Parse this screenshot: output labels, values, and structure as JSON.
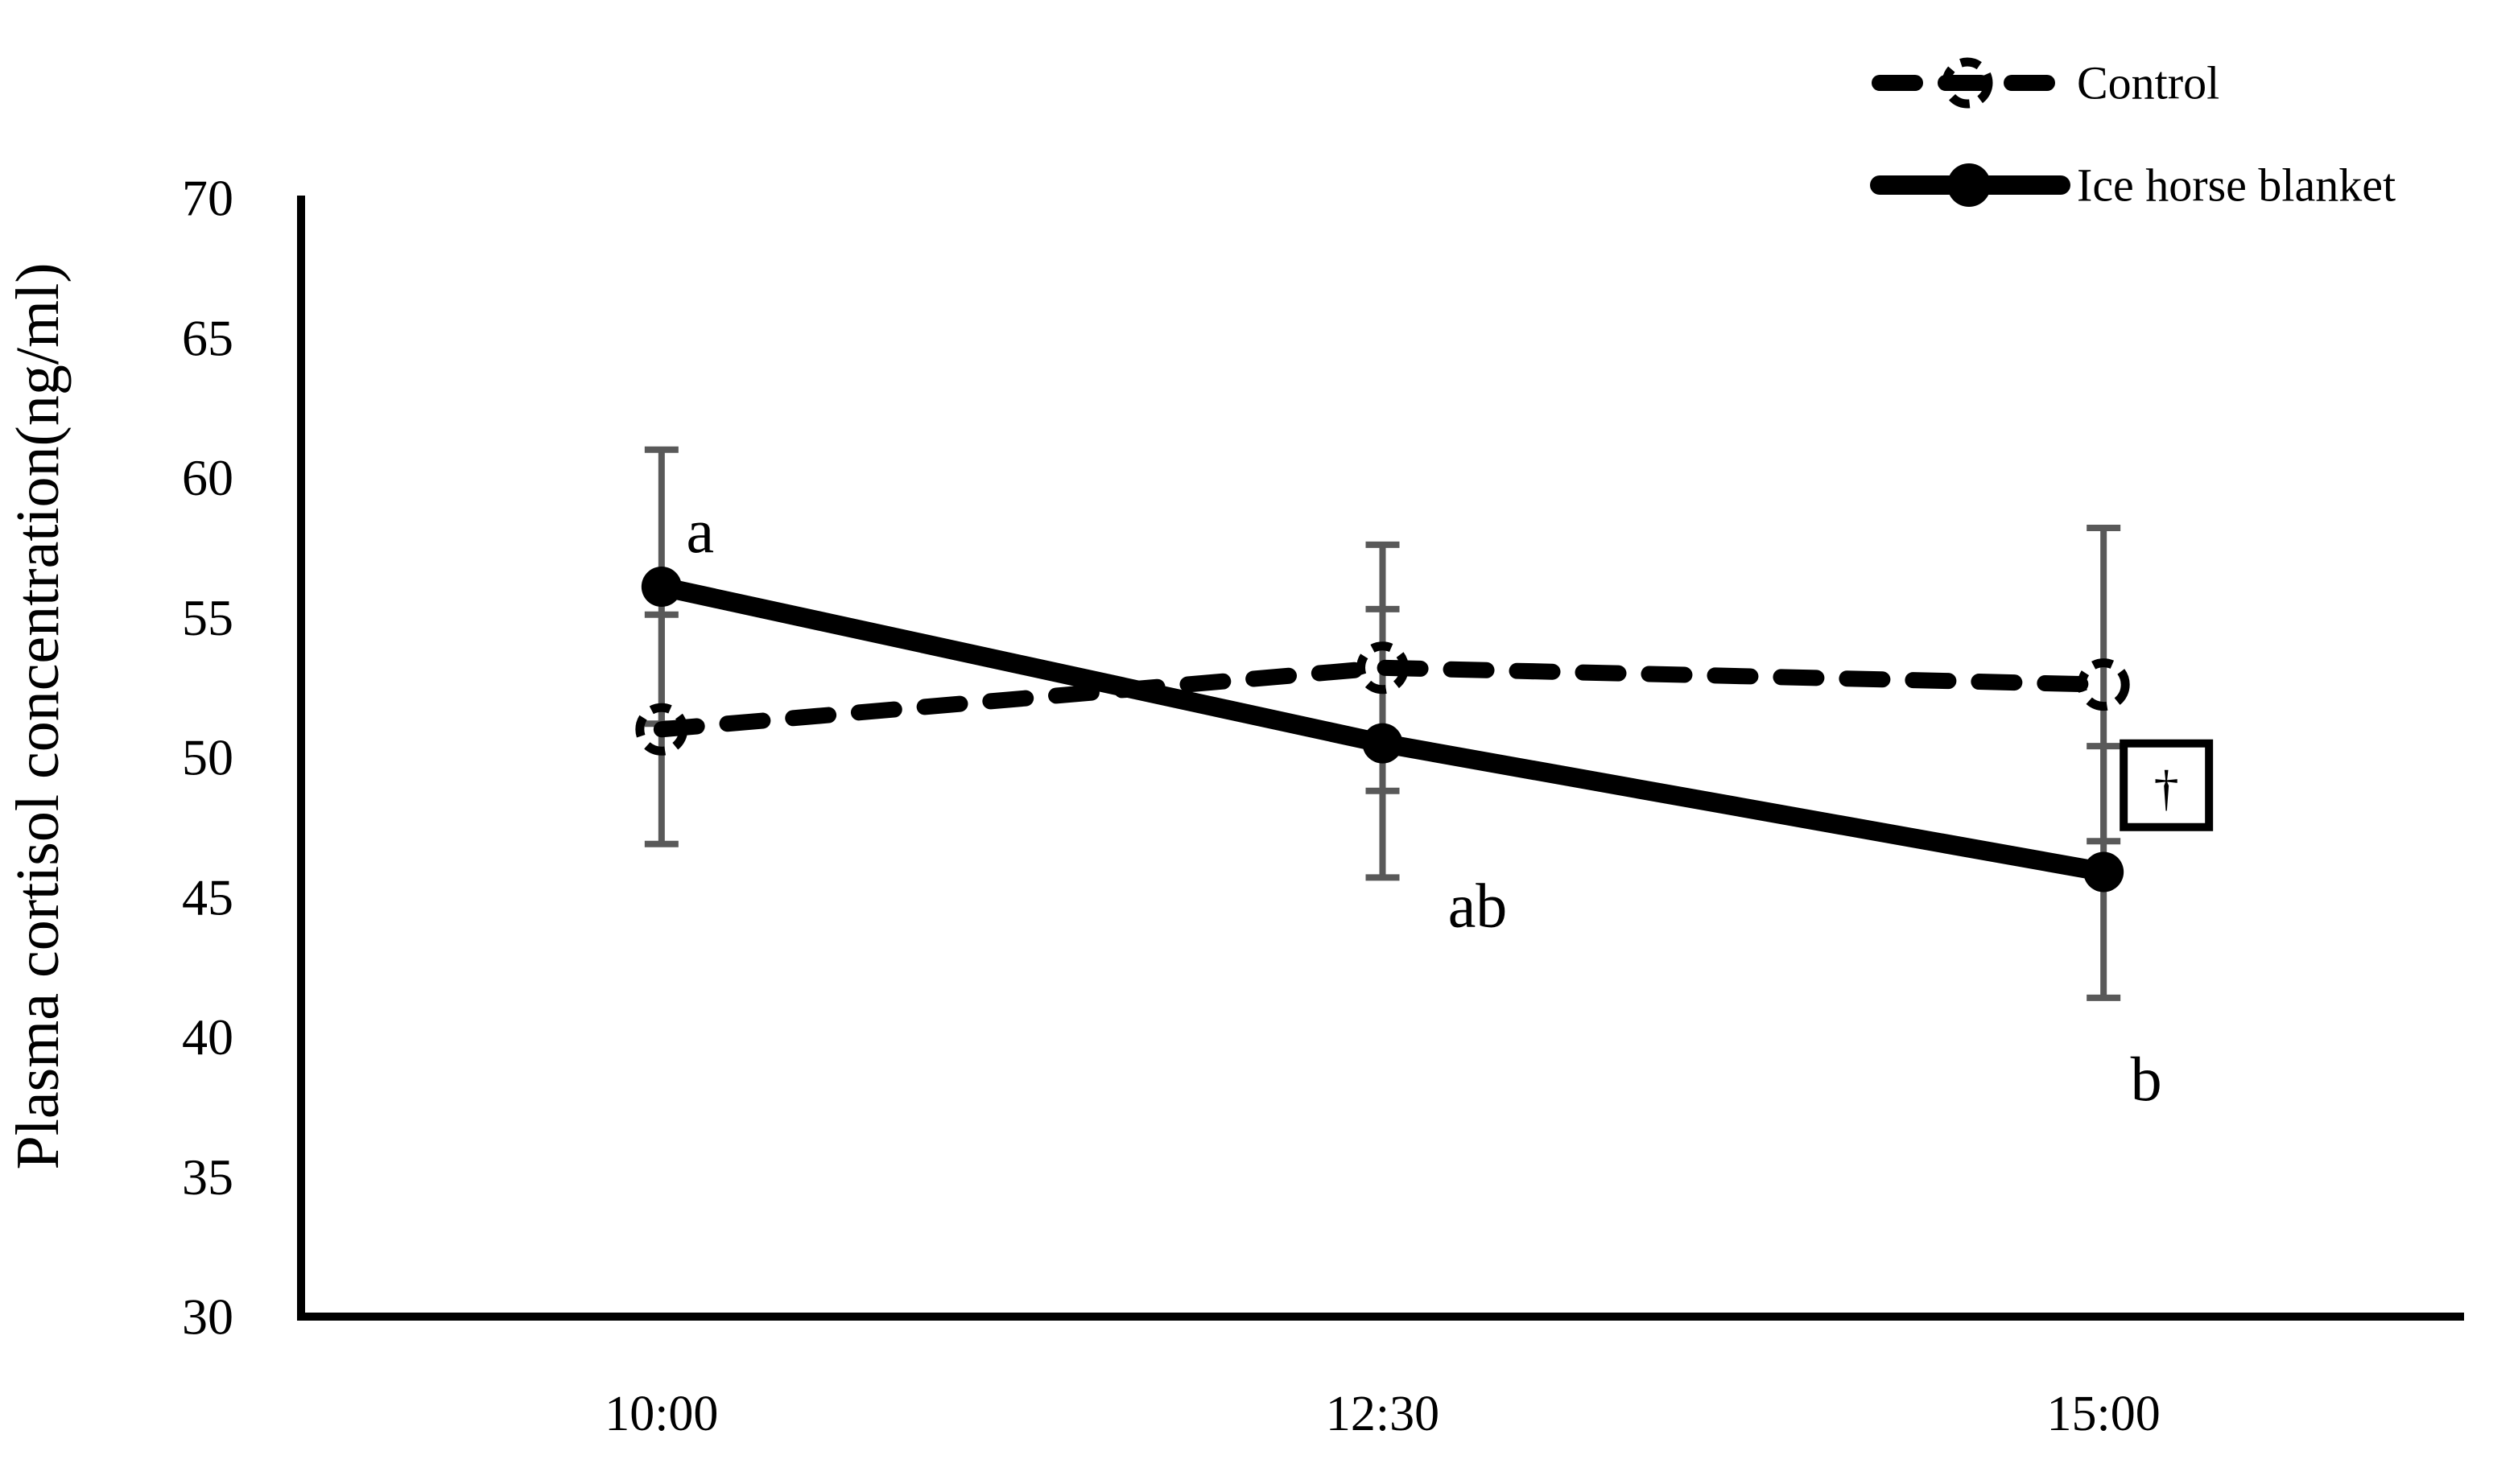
{
  "figure": {
    "background": "#ffffff",
    "text_color": "#000000"
  },
  "chart_data": {
    "type": "line",
    "title": "",
    "xlabel": "",
    "ylabel": "Plasma cortisol concentration(ng/ml)",
    "categories": [
      "10:00",
      "12:30",
      "15:00"
    ],
    "ylim": [
      30,
      70
    ],
    "ytick_step": 5,
    "ytick_labels": [
      "30",
      "35",
      "40",
      "45",
      "50",
      "55",
      "60",
      "65",
      "70"
    ],
    "grid": false,
    "legend_position": "top-right",
    "error_bar_color": "#595959",
    "series": [
      {
        "name": "Control",
        "values": [
          51.0,
          53.2,
          52.6
        ],
        "errors": [
          4.1,
          4.4,
          5.6
        ],
        "color": "#000000",
        "line_style": "dashed",
        "marker": "open-dashed-circle"
      },
      {
        "name": "Ice horse blanket",
        "values": [
          56.1,
          50.5,
          45.9
        ],
        "errors": [
          4.9,
          4.8,
          4.5
        ],
        "color": "#000000",
        "line_style": "solid",
        "marker": "filled-circle"
      }
    ],
    "annotations": [
      {
        "text": "a",
        "category_index": 0,
        "y_value": 58.1,
        "dx": 48,
        "boxed": false
      },
      {
        "text": "ab",
        "category_index": 1,
        "y_value": 44.7,
        "dx": 118,
        "boxed": false
      },
      {
        "text": "b",
        "category_index": 2,
        "y_value": 38.5,
        "dx": 53,
        "boxed": false
      },
      {
        "text": "†",
        "category_index": 2,
        "y_value": 49.0,
        "dx": 78,
        "boxed": true
      }
    ]
  }
}
